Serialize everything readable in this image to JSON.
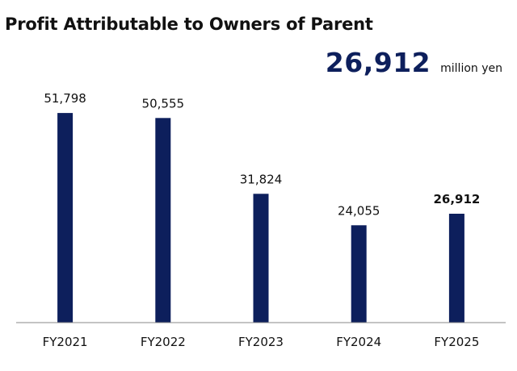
{
  "title": "Profit Attributable to Owners of Parent",
  "headline": {
    "value": "26,912",
    "unit": "million yen"
  },
  "colors": {
    "bar": "#0d1f5c",
    "headline": "#0d1f5c",
    "axis": "#8a8a8a"
  },
  "chart_data": {
    "type": "bar",
    "title": "Profit Attributable to Owners of Parent",
    "xlabel": "",
    "ylabel": "",
    "categories": [
      "FY2021",
      "FY2022",
      "FY2023",
      "FY2024",
      "FY2025"
    ],
    "values": [
      51798,
      50555,
      31824,
      24055,
      26912
    ],
    "value_labels": [
      "51,798",
      "50,555",
      "31,824",
      "24,055",
      "26,912"
    ],
    "highlight_index": 4,
    "ylim": [
      0,
      55000
    ],
    "grid": false,
    "legend": "none"
  }
}
